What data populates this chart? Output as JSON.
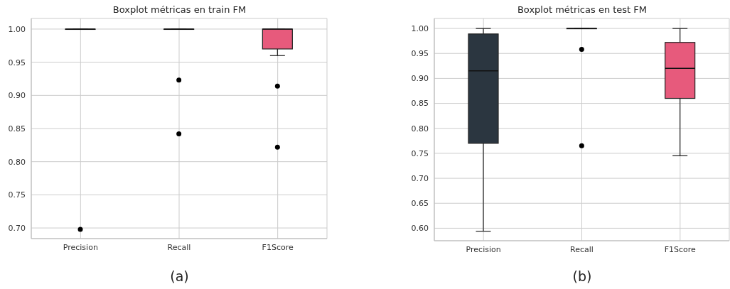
{
  "chart_data": [
    {
      "type": "box",
      "title": "Boxplot métricas en train FM",
      "categories": [
        "Precision",
        "Recall",
        "F1Score"
      ],
      "boxes": [
        {
          "low": 1.0,
          "q1": 1.0,
          "median": 1.0,
          "q3": 1.0,
          "high": 1.0,
          "outliers": [
            0.698
          ]
        },
        {
          "low": 1.0,
          "q1": 1.0,
          "median": 1.0,
          "q3": 1.0,
          "high": 1.0,
          "outliers": [
            0.923,
            0.842
          ]
        },
        {
          "low": 0.96,
          "q1": 0.97,
          "median": 1.0,
          "q3": 1.0,
          "high": 1.0,
          "outliers": [
            0.914,
            0.822
          ]
        }
      ],
      "colors": [
        "#2b3640",
        "#2b3640",
        "#e75a7c"
      ],
      "ylim": [
        0.684,
        1.016
      ],
      "yticks": [
        {
          "value": 0.7,
          "label": "0.70"
        },
        {
          "value": 0.75,
          "label": "0.75"
        },
        {
          "value": 0.8,
          "label": "0.80"
        },
        {
          "value": 0.85,
          "label": "0.85"
        },
        {
          "value": 0.9,
          "label": "0.90"
        },
        {
          "value": 0.95,
          "label": "0.95"
        },
        {
          "value": 1.0,
          "label": "1.00"
        }
      ],
      "grid": true,
      "annotations": [
        "(a)"
      ]
    },
    {
      "type": "box",
      "title": "Boxplot métricas en test FM",
      "categories": [
        "Precision",
        "Recall",
        "F1Score"
      ],
      "boxes": [
        {
          "low": 0.594,
          "q1": 0.77,
          "median": 0.915,
          "q3": 0.989,
          "high": 1.0
        },
        {
          "low": 1.0,
          "q1": 1.0,
          "median": 1.0,
          "q3": 1.0,
          "high": 1.0,
          "outliers": [
            0.958,
            0.765
          ]
        },
        {
          "low": 0.745,
          "q1": 0.86,
          "median": 0.92,
          "q3": 0.972,
          "high": 1.0
        }
      ],
      "colors": [
        "#2b3640",
        "#2b3640",
        "#e75a7c"
      ],
      "ylim": [
        0.575,
        1.02
      ],
      "yticks": [
        {
          "value": 0.6,
          "label": "0.60"
        },
        {
          "value": 0.65,
          "label": "0.65"
        },
        {
          "value": 0.7,
          "label": "0.70"
        },
        {
          "value": 0.75,
          "label": "0.75"
        },
        {
          "value": 0.8,
          "label": "0.80"
        },
        {
          "value": 0.85,
          "label": "0.85"
        },
        {
          "value": 0.9,
          "label": "0.90"
        },
        {
          "value": 0.95,
          "label": "0.95"
        },
        {
          "value": 1.0,
          "label": "1.00"
        }
      ],
      "grid": true,
      "annotations": [
        "(b)"
      ]
    }
  ]
}
